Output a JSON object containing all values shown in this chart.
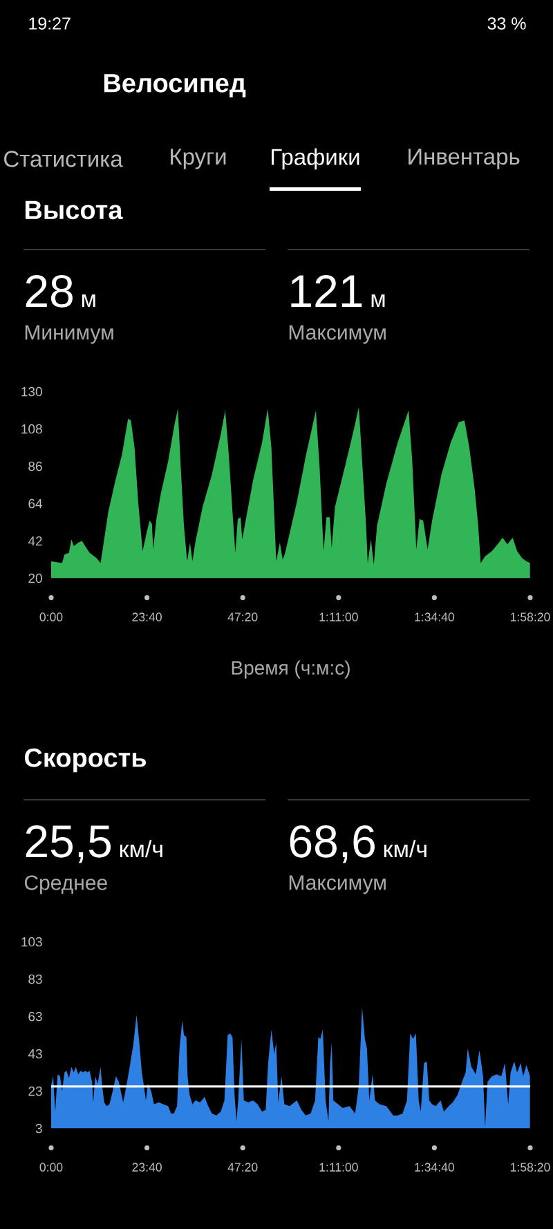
{
  "chart_data": [
    {
      "type": "other",
      "title": "Велосипед",
      "annotations": [
        "19:27",
        "33 %",
        "Статистика",
        "Круги",
        "Графики",
        "Инвентарь"
      ]
    },
    {
      "type": "area",
      "title": "Высота",
      "annotations": [
        "28",
        "м",
        "Минимум",
        "121",
        "м",
        "Максимум"
      ],
      "xlabel": "Время (ч:м:с)",
      "color": "#31b557",
      "x": [
        0,
        2.7,
        3.3,
        4.4,
        5.0,
        5.6,
        6.7,
        7.6,
        8.4,
        9.5,
        11.2,
        12.2,
        12.6,
        14.1,
        15.8,
        17.5,
        19.0,
        19.7,
        20.6,
        21.5,
        22.6,
        23.5,
        24.3,
        24.9,
        25.2,
        26.0,
        27.1,
        28.9,
        30.5,
        31.3,
        32.0,
        32.8,
        33.6,
        34.3,
        34.9,
        35.6,
        37.4,
        39.7,
        41.9,
        43.0,
        43.9,
        44.8,
        45.5,
        46.1,
        46.8,
        47.2,
        48.2,
        49.9,
        52.1,
        53.5,
        54.4,
        55.6,
        56.5,
        57.2,
        57.8,
        60.7,
        62.9,
        65.4,
        66.3,
        67.3,
        68.0,
        68.8,
        69.3,
        70.1,
        72.6,
        74.8,
        76.0,
        76.9,
        77.8,
        78.2,
        79.0,
        79.7,
        80.5,
        82.8,
        85.6,
        88.3,
        89.2,
        90.2,
        91.0,
        91.9,
        93.0,
        94.1,
        96.4,
        98.7,
        100.7,
        102.1,
        103.3,
        104.6,
        105.5,
        106.1,
        107.2,
        108.9,
        110.6,
        111.5,
        112.7,
        114.0,
        115.1,
        116.3,
        117.4,
        118.3
      ],
      "values": [
        30,
        29,
        34,
        35,
        43,
        39,
        41,
        42,
        39,
        35,
        32,
        29,
        35,
        59,
        77,
        93,
        114,
        113,
        97,
        65,
        36,
        46,
        54,
        52,
        37,
        55,
        70,
        89,
        111,
        120,
        86,
        51,
        30,
        41,
        30,
        41,
        62,
        81,
        105,
        119,
        92,
        59,
        35,
        55,
        56,
        43,
        56,
        78,
        100,
        120,
        97,
        30,
        41,
        31,
        35,
        65,
        92,
        119,
        86,
        36,
        56,
        56,
        38,
        62,
        86,
        108,
        121,
        86,
        51,
        29,
        43,
        28,
        51,
        76,
        100,
        119,
        89,
        37,
        55,
        54,
        37,
        54,
        81,
        100,
        112,
        113,
        97,
        73,
        51,
        29,
        33,
        36,
        41,
        44,
        40,
        44,
        36,
        32,
        30,
        29
      ],
      "xlim": [
        0,
        118.333
      ],
      "ylim": [
        20,
        130
      ],
      "xticks": [
        {
          "value": 0,
          "label": "0:00"
        },
        {
          "value": 23.667,
          "label": "23:40"
        },
        {
          "value": 47.333,
          "label": "47:20"
        },
        {
          "value": 71,
          "label": "1:11:00"
        },
        {
          "value": 94.667,
          "label": "1:34:40"
        },
        {
          "value": 118.333,
          "label": "1:58:20"
        }
      ],
      "yticks": [
        20,
        42,
        64,
        86,
        108,
        130
      ]
    },
    {
      "type": "area",
      "title": "Скорость",
      "annotations": [
        "25,5",
        "км/ч",
        "Среднее",
        "68,6",
        "км/ч",
        "Максимум"
      ],
      "color": "#2e80e3",
      "x": [
        0,
        0.5,
        1.0,
        1.6,
        2.2,
        2.7,
        3.3,
        3.8,
        4.4,
        5.0,
        5.6,
        6.1,
        6.7,
        7.3,
        7.9,
        8.4,
        9.0,
        9.5,
        10.1,
        10.4,
        10.9,
        11.5,
        12.2,
        12.6,
        13.1,
        13.7,
        14.4,
        15.2,
        16.0,
        16.7,
        17.2,
        17.8,
        18.6,
        19.4,
        20.3,
        21.1,
        21.7,
        22.4,
        22.9,
        23.4,
        23.9,
        24.7,
        25.4,
        26.6,
        27.7,
        28.9,
        29.6,
        30.3,
        31.1,
        31.7,
        32.4,
        32.8,
        33.4,
        33.7,
        34.2,
        34.9,
        35.6,
        36.8,
        37.9,
        38.8,
        39.7,
        40.8,
        41.9,
        42.8,
        43.6,
        44.2,
        44.8,
        45.3,
        45.8,
        46.2,
        47.0,
        47.6,
        48.7,
        49.9,
        51.0,
        52.1,
        53.0,
        53.6,
        54.4,
        55.1,
        55.6,
        56.1,
        56.9,
        57.6,
        58.9,
        60.7,
        61.8,
        62.9,
        64.1,
        65.2,
        66.0,
        66.5,
        67.1,
        67.8,
        68.5,
        68.9,
        69.3,
        69.7,
        70.9,
        72.0,
        73.7,
        75.1,
        76.0,
        76.8,
        77.5,
        78.0,
        78.6,
        79.4,
        80.0,
        81.1,
        82.8,
        84.5,
        85.6,
        86.8,
        87.9,
        88.7,
        89.4,
        90.1,
        90.8,
        91.3,
        92.1,
        92.8,
        93.4,
        94.1,
        95.0,
        96.2,
        97.0,
        98.2,
        99.2,
        100.4,
        101.5,
        102.4,
        102.9,
        103.8,
        104.9,
        105.8,
        106.7,
        107.2,
        107.8,
        108.9,
        110.0,
        111.2,
        112.1,
        112.9,
        113.5,
        114.4,
        115.1,
        116.0,
        116.6,
        117.4,
        118.0,
        118.3
      ],
      "values": [
        26,
        31,
        12,
        32,
        31,
        23,
        33,
        34,
        30,
        36,
        33,
        36,
        32,
        34,
        33,
        34,
        33,
        34,
        28,
        17,
        31,
        27,
        36,
        26,
        17,
        15,
        16,
        23,
        31,
        28,
        23,
        17,
        26,
        36,
        48,
        64,
        51,
        33,
        26,
        18,
        27,
        23,
        16,
        17,
        16,
        15,
        11,
        11,
        15,
        46,
        61,
        53,
        52,
        31,
        21,
        16,
        18,
        17,
        20,
        15,
        11,
        10,
        12,
        18,
        53,
        54,
        52,
        21,
        7,
        18,
        51,
        18,
        17,
        18,
        16,
        12,
        13,
        38,
        56,
        43,
        49,
        17,
        31,
        16,
        15,
        18,
        13,
        10,
        11,
        18,
        52,
        51,
        56,
        18,
        7,
        38,
        49,
        18,
        16,
        14,
        15,
        11,
        26,
        68,
        51,
        46,
        18,
        32,
        18,
        16,
        15,
        10,
        10,
        11,
        18,
        54,
        51,
        54,
        18,
        12,
        38,
        39,
        18,
        16,
        15,
        18,
        12,
        15,
        17,
        21,
        28,
        33,
        46,
        36,
        32,
        45,
        31,
        4,
        28,
        31,
        32,
        31,
        38,
        16,
        33,
        39,
        33,
        38,
        31,
        37,
        33,
        31
      ],
      "xlim": [
        0,
        118.333
      ],
      "ylim": [
        3,
        103
      ],
      "xticks": [
        {
          "value": 0,
          "label": "0:00"
        },
        {
          "value": 23.667,
          "label": "23:40"
        },
        {
          "value": 47.333,
          "label": "47:20"
        },
        {
          "value": 71,
          "label": "1:11:00"
        },
        {
          "value": 94.667,
          "label": "1:34:40"
        },
        {
          "value": 118.333,
          "label": "1:58:20"
        }
      ],
      "yticks": [
        3,
        23,
        43,
        63,
        83,
        103
      ],
      "ref_lines": [
        {
          "axis": "y",
          "value": 25.5,
          "color": "#ffffff"
        }
      ]
    }
  ]
}
